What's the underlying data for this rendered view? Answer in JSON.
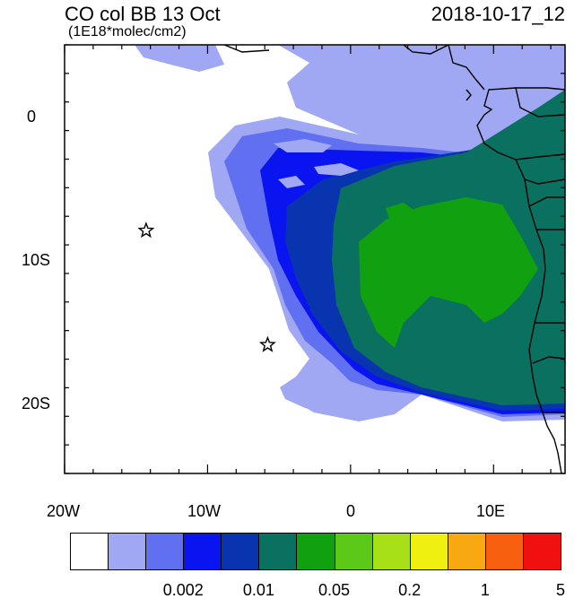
{
  "title": {
    "left": "CO col BB 13 Oct",
    "units": "(1E18*molec/cm2)",
    "right": "2018-10-17_12"
  },
  "axes": {
    "x_ticks": [
      "20W",
      "10W",
      "0",
      "10E"
    ],
    "y_ticks": [
      "0",
      "10S",
      "20S"
    ],
    "lon_range": [
      -20,
      15
    ],
    "lat_range": [
      -25,
      5
    ]
  },
  "markers": {
    "icon": "star-icon",
    "points": [
      {
        "lon": -14.3,
        "lat": -8.0
      },
      {
        "lon": -5.8,
        "lat": -16.0
      }
    ]
  },
  "colorbar": {
    "colors": [
      "#ffffff",
      "#a0a8f4",
      "#6070f0",
      "#0a14f0",
      "#0834b0",
      "#0a7060",
      "#10a010",
      "#5cc818",
      "#a8e018",
      "#f0f010",
      "#f8a810",
      "#f86010",
      "#f01010"
    ],
    "labels": [
      "0.002",
      "0.01",
      "0.05",
      "0.2",
      "1",
      "5"
    ]
  }
}
